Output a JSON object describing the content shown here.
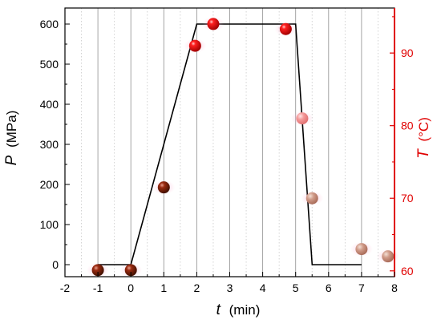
{
  "chart_data": {
    "type": "scatter",
    "xaxis": {
      "label_var": "t",
      "label_unit": "(min)",
      "range": [
        -2,
        8
      ],
      "ticks": [
        -2,
        -1,
        0,
        1,
        2,
        3,
        4,
        5,
        6,
        7,
        8
      ],
      "minor_ticks": [
        -1.5,
        -0.5,
        0.5,
        1.5,
        2.5,
        3.5,
        4.5,
        5.5,
        6.5,
        7.5
      ]
    },
    "yaxis_left": {
      "label_var": "P",
      "label_unit": "(MPa)",
      "range": [
        -30,
        640
      ],
      "ticks": [
        0,
        100,
        200,
        300,
        400,
        500,
        600
      ],
      "color": "#000000"
    },
    "yaxis_right": {
      "label_var": "T",
      "label_unit": "(°C)",
      "range": [
        59.2,
        96.2
      ],
      "ticks": [
        60,
        70,
        80,
        90
      ],
      "color": "#e00000"
    },
    "grid": "vertical at major x ticks (solid) and minor x ticks (dotted)",
    "series": [
      {
        "kind": "line",
        "axis": "left",
        "color": "#000000",
        "points": [
          [
            -1,
            0
          ],
          [
            0,
            0
          ],
          [
            2,
            600
          ],
          [
            5,
            600
          ],
          [
            5.5,
            0
          ],
          [
            7,
            0
          ]
        ]
      },
      {
        "kind": "scatter",
        "axis": "right",
        "color": "#e00000",
        "points": [
          {
            "x": -1,
            "y": 60.1,
            "style": "dark-red"
          },
          {
            "x": 0,
            "y": 60.1,
            "style": "dark-red"
          },
          {
            "x": 1,
            "y": 71.5,
            "style": "dark-red"
          },
          {
            "x": 1.95,
            "y": 91.0,
            "style": "bright"
          },
          {
            "x": 2.5,
            "y": 94.0,
            "style": "bright"
          },
          {
            "x": 4.7,
            "y": 93.3,
            "style": "bright"
          },
          {
            "x": 5.2,
            "y": 81.0,
            "style": "faded-pink"
          },
          {
            "x": 5.5,
            "y": 70.0,
            "style": "faded-brown"
          },
          {
            "x": 7.0,
            "y": 63.0,
            "style": "faded-brown"
          },
          {
            "x": 7.8,
            "y": 62.0,
            "style": "faded-brown"
          }
        ]
      }
    ]
  }
}
